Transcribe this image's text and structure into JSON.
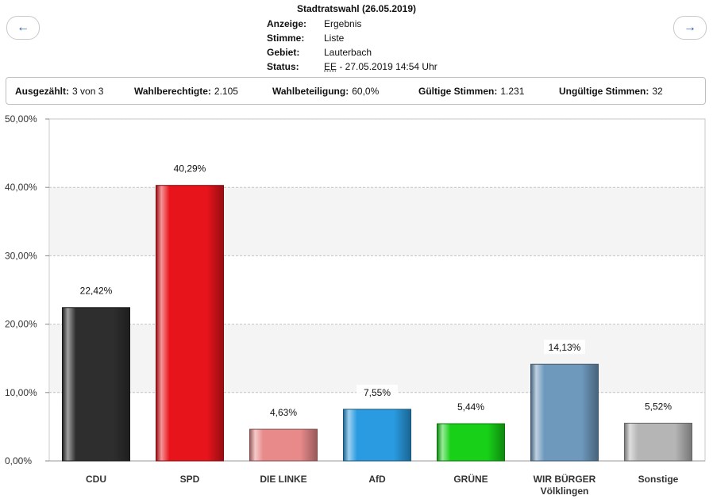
{
  "nav": {
    "prev_icon": "←",
    "next_icon": "→"
  },
  "header": {
    "title": "Stadtratswahl (26.05.2019)",
    "rows": [
      {
        "key": "Anzeige:",
        "value": "Ergebnis"
      },
      {
        "key": "Stimme:",
        "value": "Liste"
      },
      {
        "key": "Gebiet:",
        "value": "Lauterbach"
      },
      {
        "key": "Status:",
        "abbr": "EE",
        "value": " - 27.05.2019 14:54 Uhr"
      }
    ]
  },
  "stats": [
    {
      "key": "Ausgezählt:",
      "value": "3 von 3"
    },
    {
      "key": "Wahlberechtigte:",
      "value": "2.105"
    },
    {
      "key": "Wahlbeteiligung:",
      "value": "60,0%"
    },
    {
      "key": "Gültige Stimmen:",
      "value": "1.231"
    },
    {
      "key": "Ungültige Stimmen:",
      "value": "32"
    }
  ],
  "chart_data": {
    "type": "bar",
    "categories": [
      "CDU",
      "SPD",
      "DIE LINKE",
      "AfD",
      "GRÜNE",
      "WIR BÜRGER Völklingen",
      "Sonstige"
    ],
    "category_lines": [
      [
        "CDU"
      ],
      [
        "SPD"
      ],
      [
        "DIE LINKE"
      ],
      [
        "AfD"
      ],
      [
        "GRÜNE"
      ],
      [
        "WIR BÜRGER",
        "Völklingen"
      ],
      [
        "Sonstige"
      ]
    ],
    "values": [
      22.42,
      40.29,
      4.63,
      7.55,
      5.44,
      14.13,
      5.52
    ],
    "value_labels": [
      "22,42%",
      "40,29%",
      "4,63%",
      "7,55%",
      "5,44%",
      "14,13%",
      "5,52%"
    ],
    "colors": [
      "#2e2e2e",
      "#e8141b",
      "#e88a8a",
      "#2a9be0",
      "#17d017",
      "#6e99bd",
      "#b5b5b5"
    ],
    "ylim": [
      0,
      50
    ],
    "yticks": [
      0,
      10,
      20,
      30,
      40,
      50
    ],
    "ytick_labels": [
      "0,00%",
      "10,00%",
      "20,00%",
      "30,00%",
      "40,00%",
      "50,00%"
    ],
    "grid": true
  }
}
